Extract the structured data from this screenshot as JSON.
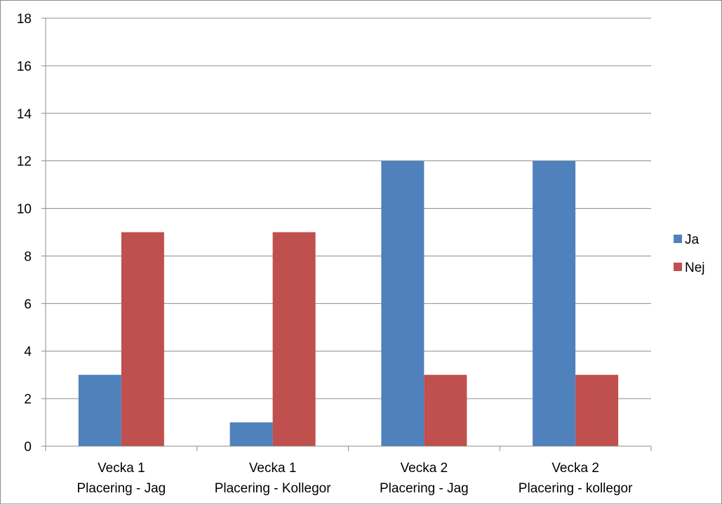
{
  "chart_data": {
    "type": "bar",
    "categories": [
      [
        "Vecka 1",
        "Placering - Jag"
      ],
      [
        "Vecka 1",
        "Placering -  Kollegor"
      ],
      [
        "Vecka 2",
        "Placering -  Jag"
      ],
      [
        "Vecka 2",
        "Placering - kollegor"
      ]
    ],
    "series": [
      {
        "name": "Ja",
        "color": "#4f81bd",
        "values": [
          3,
          1,
          12,
          12
        ]
      },
      {
        "name": "Nej",
        "color": "#c0504d",
        "values": [
          9,
          9,
          3,
          3
        ]
      }
    ],
    "ylim": [
      0,
      18
    ],
    "yticks": [
      0,
      2,
      4,
      6,
      8,
      10,
      12,
      14,
      16,
      18
    ],
    "grid": true,
    "legend": "right"
  }
}
